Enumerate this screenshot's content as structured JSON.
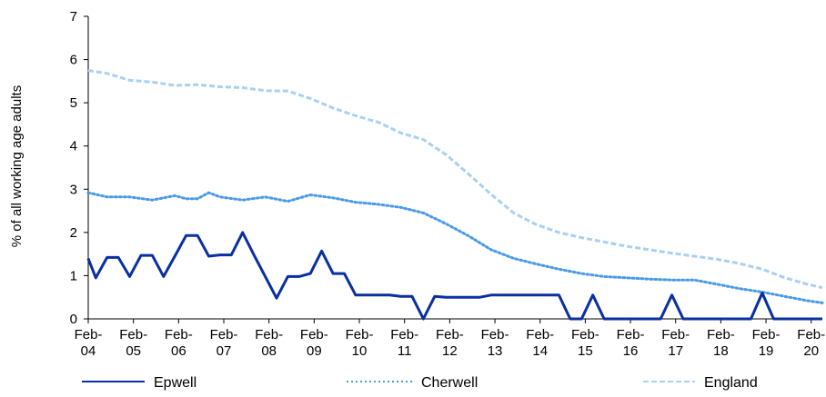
{
  "chart_data": {
    "type": "line",
    "title": "",
    "xlabel": "",
    "ylabel": "% of all working age adults",
    "ylim": [
      0,
      7
    ],
    "xlim": [
      2004.083,
      2020.33
    ],
    "y_ticks": [
      0,
      1,
      2,
      3,
      4,
      5,
      6,
      7
    ],
    "x_ticks": [
      {
        "x": 2004.083,
        "line1": "Feb-",
        "line2": "04"
      },
      {
        "x": 2005.083,
        "line1": "Feb-",
        "line2": "05"
      },
      {
        "x": 2006.083,
        "line1": "Feb-",
        "line2": "06"
      },
      {
        "x": 2007.083,
        "line1": "Feb-",
        "line2": "07"
      },
      {
        "x": 2008.083,
        "line1": "Feb-",
        "line2": "08"
      },
      {
        "x": 2009.083,
        "line1": "Feb-",
        "line2": "09"
      },
      {
        "x": 2010.083,
        "line1": "Feb-",
        "line2": "10"
      },
      {
        "x": 2011.083,
        "line1": "Feb-",
        "line2": "11"
      },
      {
        "x": 2012.083,
        "line1": "Feb-",
        "line2": "12"
      },
      {
        "x": 2013.083,
        "line1": "Feb-",
        "line2": "13"
      },
      {
        "x": 2014.083,
        "line1": "Feb-",
        "line2": "14"
      },
      {
        "x": 2015.083,
        "line1": "Feb-",
        "line2": "15"
      },
      {
        "x": 2016.083,
        "line1": "Feb-",
        "line2": "16"
      },
      {
        "x": 2017.083,
        "line1": "Feb-",
        "line2": "17"
      },
      {
        "x": 2018.083,
        "line1": "Feb-",
        "line2": "18"
      },
      {
        "x": 2019.083,
        "line1": "Feb-",
        "line2": "19"
      },
      {
        "x": 2020.083,
        "line1": "Feb-",
        "line2": "20"
      }
    ],
    "legend_position": "bottom",
    "grid": false,
    "series": [
      {
        "name": "Epwell",
        "color": "#0a2fa3",
        "style": "solid",
        "x": [
          2004.08,
          2004.25,
          2004.5,
          2004.75,
          2005.0,
          2005.25,
          2005.5,
          2005.75,
          2006.0,
          2006.25,
          2006.5,
          2006.75,
          2007.0,
          2007.25,
          2007.5,
          2007.75,
          2008.0,
          2008.25,
          2008.5,
          2008.75,
          2009.0,
          2009.25,
          2009.5,
          2009.75,
          2010.0,
          2010.25,
          2010.5,
          2010.75,
          2011.0,
          2011.25,
          2011.5,
          2011.75,
          2012.0,
          2012.25,
          2012.5,
          2012.75,
          2013.0,
          2013.25,
          2013.5,
          2013.75,
          2014.0,
          2014.25,
          2014.5,
          2014.75,
          2015.0,
          2015.25,
          2015.5,
          2015.75,
          2016.0,
          2016.25,
          2016.5,
          2016.75,
          2017.0,
          2017.25,
          2017.5,
          2017.75,
          2018.0,
          2018.25,
          2018.5,
          2018.75,
          2019.0,
          2019.25,
          2019.5,
          2019.75,
          2020.0,
          2020.33
        ],
        "y": [
          1.4,
          0.95,
          1.42,
          1.42,
          0.98,
          1.47,
          1.47,
          0.98,
          1.45,
          1.93,
          1.93,
          1.45,
          1.48,
          1.48,
          2.0,
          1.48,
          0.98,
          0.48,
          0.98,
          0.98,
          1.05,
          1.57,
          1.05,
          1.05,
          0.55,
          0.55,
          0.55,
          0.55,
          0.52,
          0.52,
          0.0,
          0.52,
          0.5,
          0.5,
          0.5,
          0.5,
          0.55,
          0.55,
          0.55,
          0.55,
          0.55,
          0.55,
          0.55,
          0.0,
          0.0,
          0.55,
          0.0,
          0.0,
          0.0,
          0.0,
          0.0,
          0.0,
          0.55,
          0.0,
          0.0,
          0.0,
          0.0,
          0.0,
          0.0,
          0.0,
          0.6,
          0.0,
          0.0,
          0.0,
          0.0,
          0.0
        ]
      },
      {
        "name": "Cherwell",
        "color": "#4a9ae8",
        "style": "dotted",
        "x": [
          2004.08,
          2004.5,
          2005.0,
          2005.5,
          2006.0,
          2006.25,
          2006.5,
          2006.75,
          2007.0,
          2007.5,
          2008.0,
          2008.5,
          2009.0,
          2009.5,
          2010.0,
          2010.5,
          2011.0,
          2011.5,
          2012.0,
          2012.5,
          2013.0,
          2013.5,
          2014.0,
          2014.5,
          2015.0,
          2015.5,
          2016.0,
          2016.5,
          2017.0,
          2017.5,
          2018.0,
          2018.5,
          2019.0,
          2019.5,
          2020.0,
          2020.33
        ],
        "y": [
          2.92,
          2.82,
          2.82,
          2.75,
          2.85,
          2.78,
          2.78,
          2.92,
          2.82,
          2.75,
          2.82,
          2.72,
          2.87,
          2.8,
          2.7,
          2.65,
          2.58,
          2.45,
          2.2,
          1.92,
          1.6,
          1.4,
          1.27,
          1.15,
          1.05,
          0.98,
          0.95,
          0.92,
          0.9,
          0.9,
          0.8,
          0.7,
          0.62,
          0.52,
          0.42,
          0.37
        ]
      },
      {
        "name": "England",
        "color": "#a9d0f5",
        "style": "dashed",
        "x": [
          2004.08,
          2004.5,
          2005.0,
          2005.5,
          2006.0,
          2006.5,
          2007.0,
          2007.5,
          2008.0,
          2008.5,
          2009.0,
          2009.5,
          2010.0,
          2010.5,
          2011.0,
          2011.5,
          2012.0,
          2012.5,
          2013.0,
          2013.5,
          2014.0,
          2014.5,
          2015.0,
          2015.5,
          2016.0,
          2016.5,
          2017.0,
          2017.5,
          2018.0,
          2018.5,
          2019.0,
          2019.5,
          2020.0,
          2020.33
        ],
        "y": [
          5.75,
          5.68,
          5.52,
          5.48,
          5.4,
          5.42,
          5.37,
          5.35,
          5.28,
          5.27,
          5.1,
          4.88,
          4.7,
          4.55,
          4.3,
          4.15,
          3.8,
          3.35,
          2.88,
          2.45,
          2.18,
          2.0,
          1.88,
          1.78,
          1.68,
          1.6,
          1.52,
          1.45,
          1.38,
          1.28,
          1.15,
          0.95,
          0.8,
          0.72
        ]
      }
    ]
  }
}
